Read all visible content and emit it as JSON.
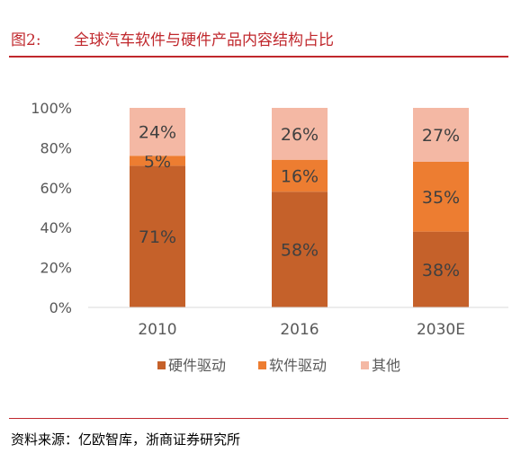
{
  "header": {
    "label": "图2:",
    "title": "全球汽车软件与硬件产品内容结构占比"
  },
  "footer": {
    "source": "资料来源：亿欧智库，浙商证券研究所"
  },
  "chart_data": {
    "type": "bar",
    "stacked": true,
    "categories": [
      "2010",
      "2016",
      "2030E"
    ],
    "series": [
      {
        "name": "硬件驱动",
        "values": [
          71,
          58,
          38
        ],
        "color": "#c5612a"
      },
      {
        "name": "软件驱动",
        "values": [
          5,
          16,
          35
        ],
        "color": "#ed7d31"
      },
      {
        "name": "其他",
        "values": [
          24,
          26,
          27
        ],
        "color": "#f4b8a4"
      }
    ],
    "ylim": [
      0,
      100
    ],
    "yticks": [
      "0%",
      "20%",
      "40%",
      "60%",
      "80%",
      "100%"
    ],
    "value_suffix": "%",
    "legend_position": "bottom",
    "grid": false
  }
}
